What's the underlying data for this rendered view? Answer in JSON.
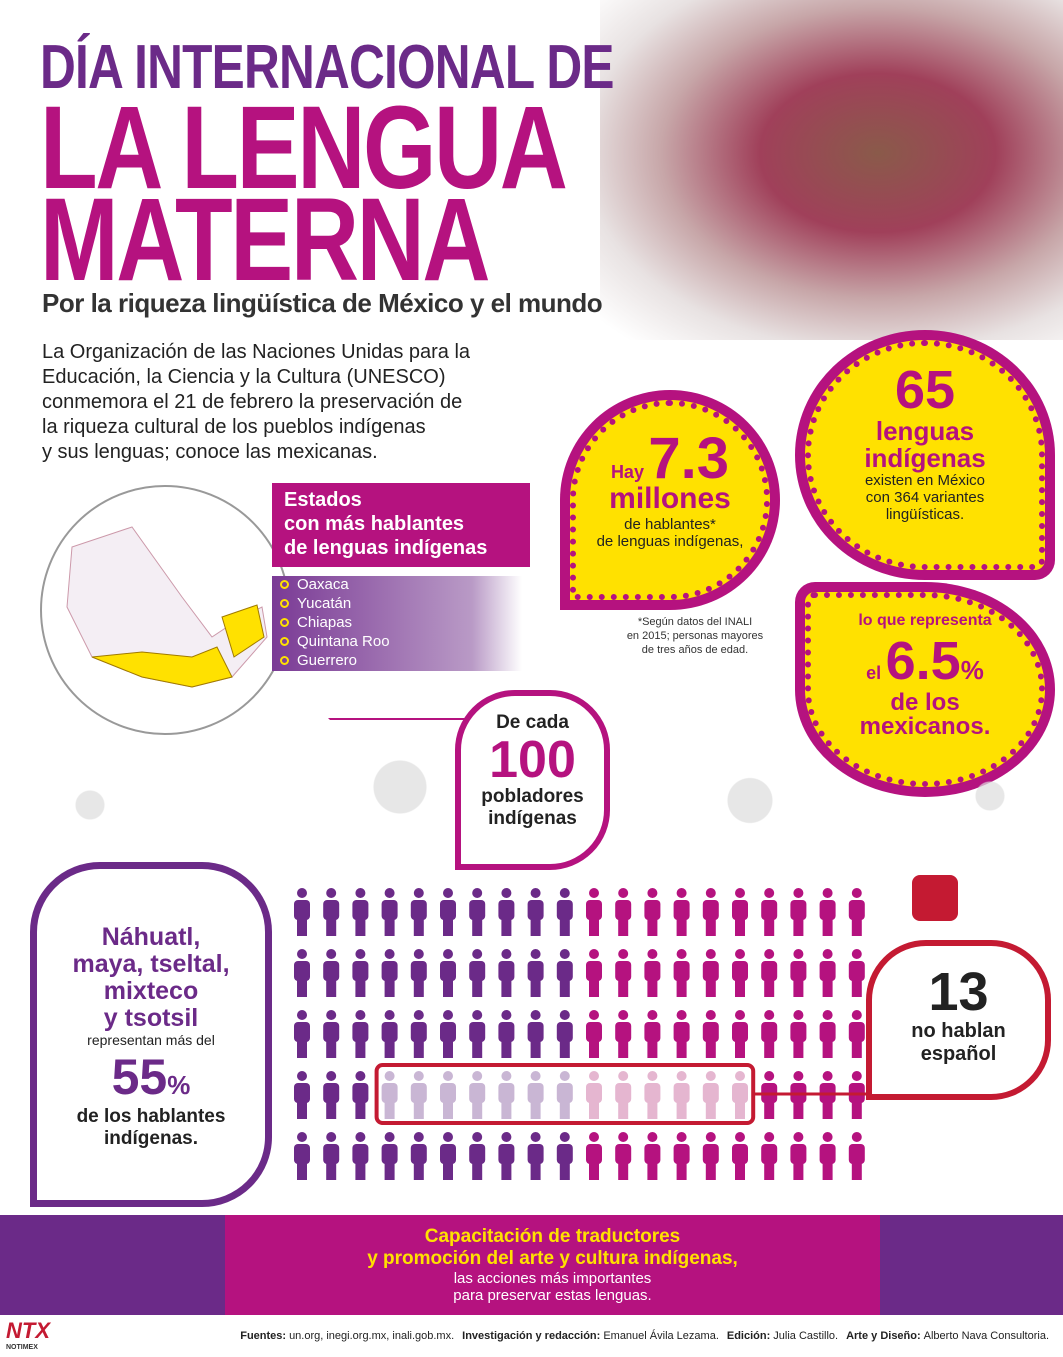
{
  "header": {
    "title_lines": [
      "DÍA INTERNACIONAL DE",
      "LA LENGUA",
      "MATERNA"
    ],
    "subtitle": "Por la riqueza lingüística de México y el mundo"
  },
  "intro": [
    "La Organización de las Naciones Unidas para la",
    "Educación, la Ciencia y la Cultura (UNESCO)",
    "conmemora el 21 de febrero la preservación de",
    "la riqueza cultural de los pueblos indígenas",
    "y sus lenguas; conoce las mexicanas."
  ],
  "states": {
    "heading": [
      "Estados",
      "con más hablantes",
      "de lenguas indígenas"
    ],
    "items": [
      "Oaxaca",
      "Yucatán",
      "Chiapas",
      "Quintana Roo",
      "Guerrero"
    ]
  },
  "speakers": {
    "prefix": "Hay",
    "value": "7.3",
    "unit": "millones",
    "lines": [
      "de hablantes*",
      "de lenguas indígenas,"
    ]
  },
  "languages": {
    "value": "65",
    "lines_bold": [
      "lenguas",
      "indígenas"
    ],
    "lines": [
      "existen en México",
      "con 364 variantes",
      "lingüísticas."
    ]
  },
  "share": {
    "lead": "lo que representa",
    "prefix": "el",
    "value": "6.5",
    "unit": "%",
    "lines": [
      "de los",
      "mexicanos."
    ]
  },
  "footnote": [
    "*Según datos del INALI",
    "en 2015; personas mayores",
    "de tres años de edad."
  ],
  "sample": {
    "lead": "De cada",
    "value": 100,
    "lines": [
      "pobladores",
      "indígenas"
    ]
  },
  "non_spanish": {
    "value": 13,
    "lines": [
      "no hablan",
      "español"
    ]
  },
  "main_languages": {
    "lines": [
      "Náhuatl,",
      "maya, tseltal,",
      "mixteco",
      "y tsotsil"
    ],
    "lead": "representan más del",
    "value": "55",
    "unit": "%",
    "lines_after": [
      "de los hablantes",
      "indígenas."
    ]
  },
  "banner": {
    "bold": [
      "Capacitación de traductores",
      "y promoción del arte y cultura indígenas,"
    ],
    "lines": [
      "las acciones más importantes",
      "para preservar estas lenguas."
    ]
  },
  "sources": [
    {
      "label": "Fuentes:",
      "text": "un.org,  inegi.org.mx, inali.gob.mx."
    },
    {
      "label": "Investigación y redacción:",
      "text": "Emanuel Ávila Lezama."
    },
    {
      "label": "Edición:",
      "text": "Julia Castillo."
    },
    {
      "label": "Arte y Diseño:",
      "text": "Alberto Nava Consultoria."
    }
  ],
  "logo": {
    "name": "NTX",
    "sub": "NOTIMEX"
  }
}
